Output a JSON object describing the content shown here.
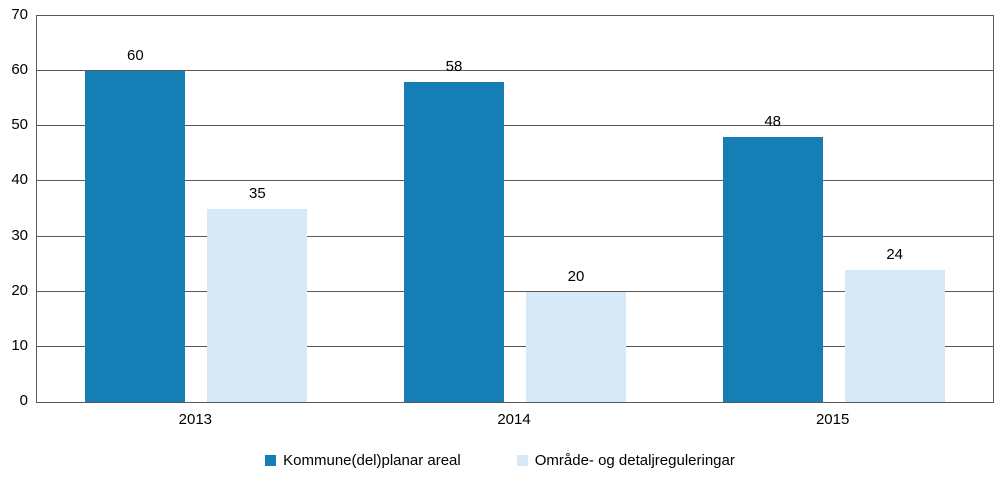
{
  "chart_data": {
    "type": "bar",
    "title": "",
    "categories": [
      "2013",
      "2014",
      "2015"
    ],
    "series": [
      {
        "name": "Kommune(del)planar areal",
        "color": "#157fb5",
        "values": [
          60,
          58,
          48
        ]
      },
      {
        "name": "Område- og detaljreguleringar",
        "color": "#d7e8f6",
        "values": [
          35,
          20,
          24
        ]
      }
    ],
    "ylim": [
      0,
      70
    ],
    "ytick_step": 10,
    "ytick_labels": [
      "0",
      "10",
      "20",
      "30",
      "40",
      "50",
      "60",
      "70"
    ],
    "grid": true,
    "gridline_color": "#595959",
    "value_labels": true,
    "legend_position": "bottom",
    "background": "#ffffff"
  }
}
